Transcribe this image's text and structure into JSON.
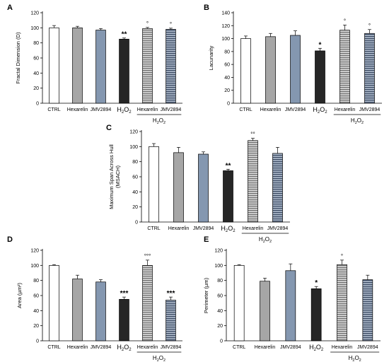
{
  "colors": {
    "CTRL": "#ffffff",
    "Hexarelin": "#a6a6a6",
    "JMV2894": "#8497b0",
    "H2O2": "#262626",
    "H2O2_Hexarelin": "#7f7f7f",
    "H2O2_JMV2894": "#44546a",
    "stroke": "#000000"
  },
  "chart_data": [
    {
      "panel": "A",
      "type": "bar",
      "ylabel": "Fractal Dimension (D)",
      "ylim": [
        0,
        120
      ],
      "yticks": [
        0,
        20,
        40,
        60,
        80,
        100,
        120
      ],
      "categories": [
        "CTRL",
        "Hexarelin",
        "JMV2894",
        "H2O2",
        "Hexarelin",
        "JMV2894"
      ],
      "group_label": "H2O2",
      "values": [
        100,
        100,
        97,
        85,
        99,
        98
      ],
      "errors": [
        3,
        2,
        2,
        1.5,
        1.5,
        1.5
      ],
      "annotations": [
        "",
        "",
        "",
        "**",
        "°",
        "°"
      ]
    },
    {
      "panel": "B",
      "type": "bar",
      "ylabel": "Lacunarity",
      "ylim": [
        0,
        140
      ],
      "yticks": [
        0,
        20,
        40,
        60,
        80,
        100,
        120,
        140
      ],
      "categories": [
        "CTRL",
        "Hexarelin",
        "JMV2894",
        "H2O2",
        "Hexarelin",
        "JMV2894"
      ],
      "group_label": "H2O2",
      "values": [
        100,
        103,
        105,
        81,
        113,
        108
      ],
      "errors": [
        4,
        5,
        7,
        4,
        8,
        6
      ],
      "annotations": [
        "",
        "",
        "",
        "*",
        "°",
        "°"
      ]
    },
    {
      "panel": "C",
      "type": "bar",
      "ylabel": "Maximum Span Across Hull (MSACH)",
      "ylim": [
        0,
        120
      ],
      "yticks": [
        0,
        20,
        40,
        60,
        80,
        100,
        120
      ],
      "categories": [
        "CTRL",
        "Hexarelin",
        "JMV2894",
        "H2O2",
        "Hexarelin",
        "JMV2894"
      ],
      "group_label": "H2O2",
      "values": [
        100,
        92,
        90,
        68,
        108,
        91
      ],
      "errors": [
        4,
        7,
        3,
        2,
        3,
        8
      ],
      "annotations": [
        "",
        "",
        "",
        "**",
        "°°",
        ""
      ]
    },
    {
      "panel": "D",
      "type": "bar",
      "ylabel": "Area (µm²)",
      "ylim": [
        0,
        120
      ],
      "yticks": [
        0,
        20,
        40,
        60,
        80,
        100,
        120
      ],
      "categories": [
        "CTRL",
        "Hexarelin",
        "JMV2894",
        "H2O2",
        "Hexarelin",
        "JMV2894"
      ],
      "group_label": "H2O2",
      "values": [
        100,
        82,
        78,
        55,
        100,
        54
      ],
      "errors": [
        1,
        5,
        3,
        3,
        7,
        4
      ],
      "annotations": [
        "",
        "",
        "",
        "***",
        "°°°",
        "***"
      ]
    },
    {
      "panel": "E",
      "type": "bar",
      "ylabel": "Perimeter (µm)",
      "ylim": [
        0,
        120
      ],
      "yticks": [
        0,
        20,
        40,
        60,
        80,
        100,
        120
      ],
      "categories": [
        "CTRL",
        "Hexarelin",
        "JMV2894",
        "H2O2",
        "Hexarelin",
        "JMV2894"
      ],
      "group_label": "H2O2",
      "values": [
        100,
        79,
        93,
        69,
        101,
        81
      ],
      "errors": [
        1,
        4,
        9,
        3,
        6,
        6
      ],
      "annotations": [
        "",
        "",
        "",
        "*",
        "°",
        ""
      ]
    }
  ]
}
